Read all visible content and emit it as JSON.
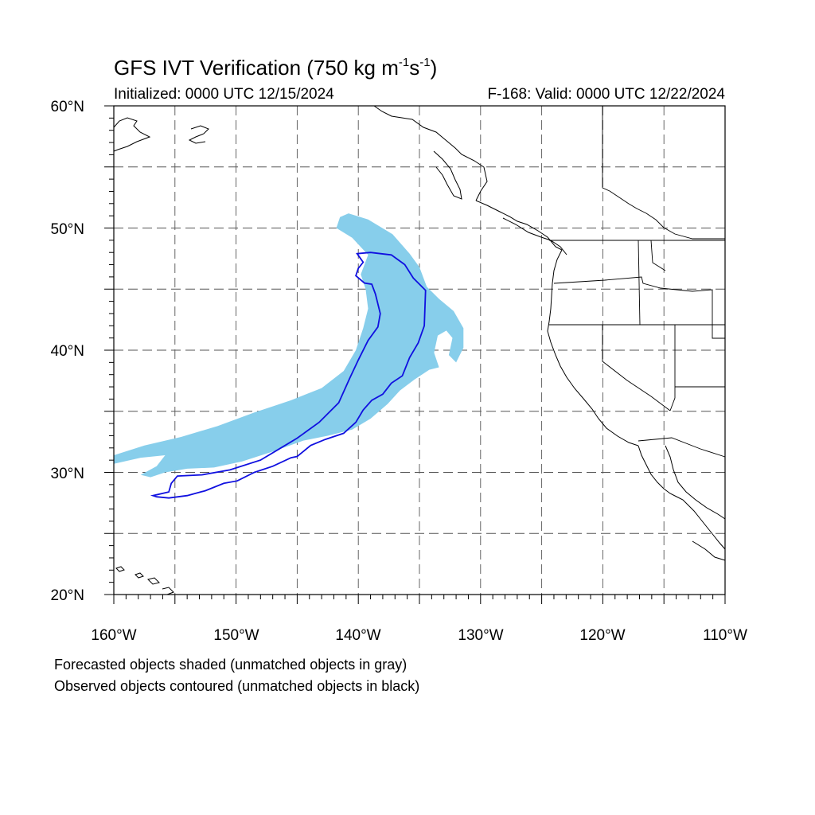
{
  "title": {
    "main": "GFS IVT Verification (750 kg m",
    "sup1": "-1",
    "mid": "s",
    "sup2": "-1",
    "end": ")"
  },
  "initialized": "Initialized: 0000 UTC 12/15/2024",
  "valid": "F-168: Valid: 0000 UTC 12/22/2024",
  "map": {
    "lon_range": [
      -160,
      -110
    ],
    "lat_range": [
      20,
      60
    ],
    "projection": "cylindrical equidistant",
    "grid": "dashed, every 5 degrees",
    "lat_labels": [
      "60°N",
      "50°N",
      "40°N",
      "30°N",
      "20°N"
    ],
    "lon_labels": [
      "160°W",
      "150°W",
      "140°W",
      "130°W",
      "120°W",
      "110°W"
    ],
    "forecast_fill_color": "#87ceeb",
    "observed_contour_color": "#1010e0",
    "forecast_object": [
      [
        -141.5,
        50.9
      ],
      [
        -140.8,
        51.2
      ],
      [
        -139.2,
        50.7
      ],
      [
        -137.2,
        49.5
      ],
      [
        -135.8,
        47.9
      ],
      [
        -135.0,
        46.8
      ],
      [
        -134.4,
        45.2
      ],
      [
        -133.4,
        44.2
      ],
      [
        -132.2,
        43.2
      ],
      [
        -131.4,
        41.8
      ],
      [
        -131.4,
        40.2
      ],
      [
        -132.0,
        39.0
      ],
      [
        -132.6,
        39.6
      ],
      [
        -132.3,
        41.0
      ],
      [
        -132.8,
        41.6
      ],
      [
        -133.5,
        41.2
      ],
      [
        -133.8,
        39.8
      ],
      [
        -133.4,
        38.6
      ],
      [
        -134.2,
        38.4
      ],
      [
        -135.4,
        37.6
      ],
      [
        -136.6,
        36.7
      ],
      [
        -137.6,
        35.6
      ],
      [
        -139.0,
        34.4
      ],
      [
        -140.5,
        33.5
      ],
      [
        -142.5,
        33.0
      ],
      [
        -144.5,
        32.6
      ],
      [
        -147.0,
        31.7
      ],
      [
        -149.5,
        30.9
      ],
      [
        -151.8,
        30.4
      ],
      [
        -154.0,
        30.3
      ],
      [
        -155.8,
        30.0
      ],
      [
        -157.0,
        29.6
      ],
      [
        -157.8,
        29.8
      ],
      [
        -156.5,
        30.5
      ],
      [
        -155.8,
        31.4
      ],
      [
        -157.8,
        31.2
      ],
      [
        -160.0,
        30.7
      ],
      [
        -160.0,
        31.4
      ],
      [
        -157.5,
        32.2
      ],
      [
        -154.5,
        32.9
      ],
      [
        -151.5,
        33.8
      ],
      [
        -148.5,
        34.9
      ],
      [
        -145.5,
        35.9
      ],
      [
        -143.0,
        36.9
      ],
      [
        -141.2,
        38.3
      ],
      [
        -140.2,
        40.0
      ],
      [
        -139.6,
        41.8
      ],
      [
        -139.2,
        43.4
      ],
      [
        -139.4,
        45.0
      ],
      [
        -139.8,
        46.2
      ],
      [
        -139.2,
        47.8
      ],
      [
        -140.5,
        49.2
      ],
      [
        -141.8,
        50.0
      ],
      [
        -141.5,
        50.9
      ]
    ],
    "observed_object": [
      [
        -140.1,
        47.9
      ],
      [
        -139.0,
        48.0
      ],
      [
        -137.3,
        47.8
      ],
      [
        -136.2,
        47.0
      ],
      [
        -135.5,
        45.9
      ],
      [
        -134.5,
        44.9
      ],
      [
        -134.6,
        42.0
      ],
      [
        -135.1,
        40.6
      ],
      [
        -135.8,
        39.4
      ],
      [
        -136.4,
        37.9
      ],
      [
        -137.3,
        37.3
      ],
      [
        -138.0,
        36.4
      ],
      [
        -138.9,
        35.9
      ],
      [
        -139.6,
        35.1
      ],
      [
        -140.2,
        34.1
      ],
      [
        -141.2,
        33.2
      ],
      [
        -142.7,
        32.7
      ],
      [
        -143.9,
        32.2
      ],
      [
        -145.0,
        31.3
      ],
      [
        -145.5,
        31.2
      ],
      [
        -147.0,
        30.5
      ],
      [
        -148.5,
        30.0
      ],
      [
        -149.9,
        29.3
      ],
      [
        -151.0,
        29.1
      ],
      [
        -152.5,
        28.5
      ],
      [
        -154.0,
        28.1
      ],
      [
        -155.5,
        27.9
      ],
      [
        -156.5,
        28.0
      ],
      [
        -156.8,
        28.1
      ],
      [
        -155.5,
        28.4
      ],
      [
        -155.3,
        29.1
      ],
      [
        -154.8,
        29.7
      ],
      [
        -152.8,
        29.8
      ],
      [
        -150.5,
        30.2
      ],
      [
        -148.0,
        31.0
      ],
      [
        -146.5,
        31.9
      ],
      [
        -145.0,
        32.8
      ],
      [
        -143.2,
        34.1
      ],
      [
        -141.6,
        35.7
      ],
      [
        -140.7,
        37.7
      ],
      [
        -140.0,
        39.2
      ],
      [
        -139.2,
        40.8
      ],
      [
        -138.4,
        41.9
      ],
      [
        -138.2,
        43.0
      ],
      [
        -138.6,
        44.6
      ],
      [
        -138.9,
        45.4
      ],
      [
        -139.5,
        45.5
      ],
      [
        -140.2,
        46.1
      ],
      [
        -140.0,
        46.7
      ],
      [
        -139.6,
        47.2
      ],
      [
        -140.1,
        47.9
      ]
    ]
  },
  "notes": [
    "Forecasted objects shaded (unmatched objects in gray)",
    "Observed objects contoured (unmatched objects in black)"
  ]
}
